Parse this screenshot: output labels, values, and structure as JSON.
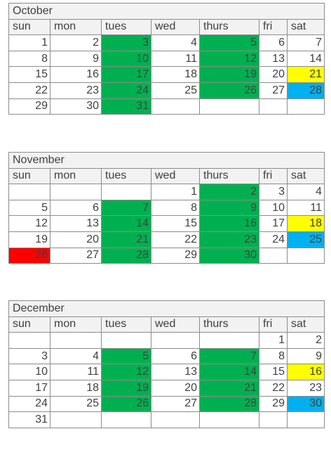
{
  "day_headers": [
    "sun",
    "mon",
    "tues",
    "wed",
    "thurs",
    "fri",
    "sat"
  ],
  "colors": {
    "green": "#00b050",
    "yellow": "#ffff00",
    "blue": "#00b0f0",
    "red": "#ff0000",
    "header_fill": "#f2f2f2",
    "border": "#8c8c8c"
  },
  "months": [
    {
      "name": "October",
      "weeks": [
        [
          {
            "d": "1"
          },
          {
            "d": "2"
          },
          {
            "d": "3",
            "hl": "green"
          },
          {
            "d": "4"
          },
          {
            "d": "5",
            "hl": "green"
          },
          {
            "d": "6"
          },
          {
            "d": "7"
          }
        ],
        [
          {
            "d": "8"
          },
          {
            "d": "9"
          },
          {
            "d": "10",
            "hl": "green"
          },
          {
            "d": "11"
          },
          {
            "d": "12",
            "hl": "green"
          },
          {
            "d": "13"
          },
          {
            "d": "14"
          }
        ],
        [
          {
            "d": "15"
          },
          {
            "d": "16"
          },
          {
            "d": "17",
            "hl": "green"
          },
          {
            "d": "18"
          },
          {
            "d": "19",
            "hl": "green"
          },
          {
            "d": "20"
          },
          {
            "d": "21",
            "hl": "yellow"
          }
        ],
        [
          {
            "d": "22"
          },
          {
            "d": "23"
          },
          {
            "d": "24",
            "hl": "green"
          },
          {
            "d": "25"
          },
          {
            "d": "26",
            "hl": "green"
          },
          {
            "d": "27"
          },
          {
            "d": "28",
            "hl": "blue"
          }
        ],
        [
          {
            "d": "29"
          },
          {
            "d": "30"
          },
          {
            "d": "31",
            "hl": "green"
          },
          {
            "d": ""
          },
          {
            "d": ""
          },
          {
            "d": ""
          },
          {
            "d": ""
          }
        ]
      ]
    },
    {
      "name": "November",
      "weeks": [
        [
          {
            "d": ""
          },
          {
            "d": ""
          },
          {
            "d": ""
          },
          {
            "d": "1"
          },
          {
            "d": "2",
            "hl": "green"
          },
          {
            "d": "3"
          },
          {
            "d": "4"
          }
        ],
        [
          {
            "d": "5"
          },
          {
            "d": "6"
          },
          {
            "d": "7",
            "hl": "green"
          },
          {
            "d": "8"
          },
          {
            "d": "9",
            "hl": "green"
          },
          {
            "d": "10"
          },
          {
            "d": "11"
          }
        ],
        [
          {
            "d": "12"
          },
          {
            "d": "13"
          },
          {
            "d": "14",
            "hl": "green"
          },
          {
            "d": "15"
          },
          {
            "d": "16",
            "hl": "green"
          },
          {
            "d": "17"
          },
          {
            "d": "18",
            "hl": "yellow"
          }
        ],
        [
          {
            "d": "19"
          },
          {
            "d": "20"
          },
          {
            "d": "21",
            "hl": "green"
          },
          {
            "d": "22"
          },
          {
            "d": "23",
            "hl": "green"
          },
          {
            "d": "24"
          },
          {
            "d": "25",
            "hl": "blue"
          }
        ],
        [
          {
            "d": "26",
            "hl": "red"
          },
          {
            "d": "27"
          },
          {
            "d": "28",
            "hl": "green"
          },
          {
            "d": "29"
          },
          {
            "d": "30",
            "hl": "green"
          },
          {
            "d": ""
          },
          {
            "d": ""
          }
        ]
      ]
    },
    {
      "name": "December",
      "weeks": [
        [
          {
            "d": ""
          },
          {
            "d": ""
          },
          {
            "d": ""
          },
          {
            "d": ""
          },
          {
            "d": ""
          },
          {
            "d": "1"
          },
          {
            "d": "2"
          }
        ],
        [
          {
            "d": "3"
          },
          {
            "d": "4"
          },
          {
            "d": "5",
            "hl": "green"
          },
          {
            "d": "6"
          },
          {
            "d": "7",
            "hl": "green"
          },
          {
            "d": "8"
          },
          {
            "d": "9"
          }
        ],
        [
          {
            "d": "10"
          },
          {
            "d": "11"
          },
          {
            "d": "12",
            "hl": "green"
          },
          {
            "d": "13"
          },
          {
            "d": "14",
            "hl": "green"
          },
          {
            "d": "15"
          },
          {
            "d": "16",
            "hl": "yellow"
          }
        ],
        [
          {
            "d": "17"
          },
          {
            "d": "18"
          },
          {
            "d": "19",
            "hl": "green"
          },
          {
            "d": "20"
          },
          {
            "d": "21",
            "hl": "green"
          },
          {
            "d": "22"
          },
          {
            "d": "23"
          }
        ],
        [
          {
            "d": "24"
          },
          {
            "d": "25"
          },
          {
            "d": "26",
            "hl": "green"
          },
          {
            "d": "27"
          },
          {
            "d": "28",
            "hl": "green"
          },
          {
            "d": "29"
          },
          {
            "d": "30",
            "hl": "blue"
          }
        ],
        [
          {
            "d": "31"
          },
          {
            "d": ""
          },
          {
            "d": ""
          },
          {
            "d": ""
          },
          {
            "d": ""
          },
          {
            "d": ""
          },
          {
            "d": ""
          }
        ]
      ]
    }
  ]
}
